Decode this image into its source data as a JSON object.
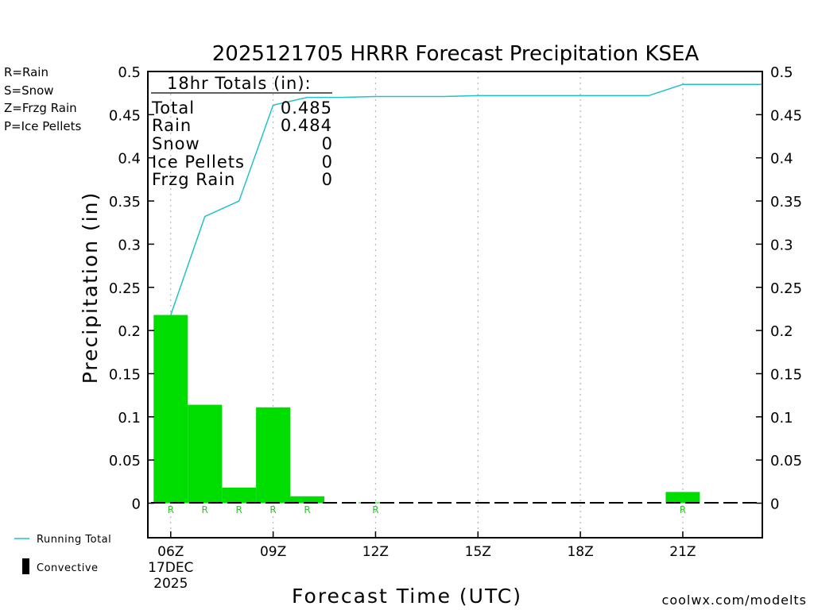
{
  "chart_data": {
    "type": "bar",
    "title": "2025121705 HRRR Forecast Precipitation KSEA",
    "xlabel": "Forecast Time (UTC)",
    "ylabel": "Precipitation (in)",
    "ylim": [
      -0.04,
      0.5
    ],
    "y_ticks": [
      "0.5",
      "0.45",
      "0.4",
      "0.35",
      "0.3",
      "0.25",
      "0.2",
      "0.15",
      "0.1",
      "0.05",
      "0"
    ],
    "y_tick_values": [
      0.5,
      0.45,
      0.4,
      0.35,
      0.3,
      0.25,
      0.2,
      0.15,
      0.1,
      0.05,
      0
    ],
    "x_range_hours": [
      5.33,
      23.33
    ],
    "x_ticks": [
      {
        "hour": 6,
        "label": "06Z",
        "sub1": "17DEC",
        "sub2": "2025"
      },
      {
        "hour": 9,
        "label": "09Z"
      },
      {
        "hour": 12,
        "label": "12Z"
      },
      {
        "hour": 15,
        "label": "15Z"
      },
      {
        "hour": 18,
        "label": "18Z"
      },
      {
        "hour": 21,
        "label": "21Z"
      }
    ],
    "grid_hours": [
      6,
      9,
      12,
      15,
      18,
      21
    ],
    "bars": {
      "hours": [
        6,
        7,
        8,
        9,
        10,
        11,
        12,
        13,
        14,
        15,
        16,
        17,
        18,
        19,
        20,
        21,
        22,
        23
      ],
      "values": [
        0.218,
        0.114,
        0.018,
        0.111,
        0.008,
        0.0,
        0.001,
        0.0,
        0.0,
        0.0,
        0.0,
        0.0,
        0.0,
        0.0,
        0.0,
        0.013,
        0.0,
        0.0
      ],
      "color": "#00dd00"
    },
    "type_labels": [
      {
        "hour": 6,
        "text": "R"
      },
      {
        "hour": 7,
        "text": "R"
      },
      {
        "hour": 8,
        "text": "R"
      },
      {
        "hour": 9,
        "text": "R"
      },
      {
        "hour": 10,
        "text": "R"
      },
      {
        "hour": 12,
        "text": "R"
      },
      {
        "hour": 21,
        "text": "R"
      }
    ],
    "running_total": {
      "name": "Running Total",
      "color": "#22c2c8",
      "hours": [
        6,
        7,
        8,
        9,
        10,
        11,
        12,
        13,
        14,
        15,
        16,
        17,
        18,
        19,
        20,
        21,
        22,
        23.33
      ],
      "values": [
        0.218,
        0.332,
        0.35,
        0.461,
        0.47,
        0.47,
        0.471,
        0.471,
        0.471,
        0.472,
        0.472,
        0.472,
        0.472,
        0.472,
        0.472,
        0.485,
        0.485,
        0.485
      ]
    },
    "totals_box": {
      "heading": "18hr Totals (in):",
      "rows": [
        {
          "label": "Total",
          "value": "0.485"
        },
        {
          "label": "Rain",
          "value": "0.484"
        },
        {
          "label": "Snow",
          "value": "0"
        },
        {
          "label": "Ice Pellets",
          "value": "0"
        },
        {
          "label": "Frzg Rain",
          "value": "0"
        }
      ]
    },
    "type_legend": [
      {
        "text": "R=Rain",
        "color": "#22cc22"
      },
      {
        "text": "S=Snow",
        "color": "#3344dd"
      },
      {
        "text": "Z=Frzg Rain",
        "color": "#ee8833"
      },
      {
        "text": "P=Ice Pellets",
        "color": "#dd2288"
      }
    ],
    "bottom_legend": [
      {
        "text": "Running Total",
        "color": "#22c2c8"
      },
      {
        "text": "Convective",
        "color": "#000000"
      }
    ],
    "credit": "coolwx.com/modelts",
    "credit_color": "#cc2222"
  }
}
